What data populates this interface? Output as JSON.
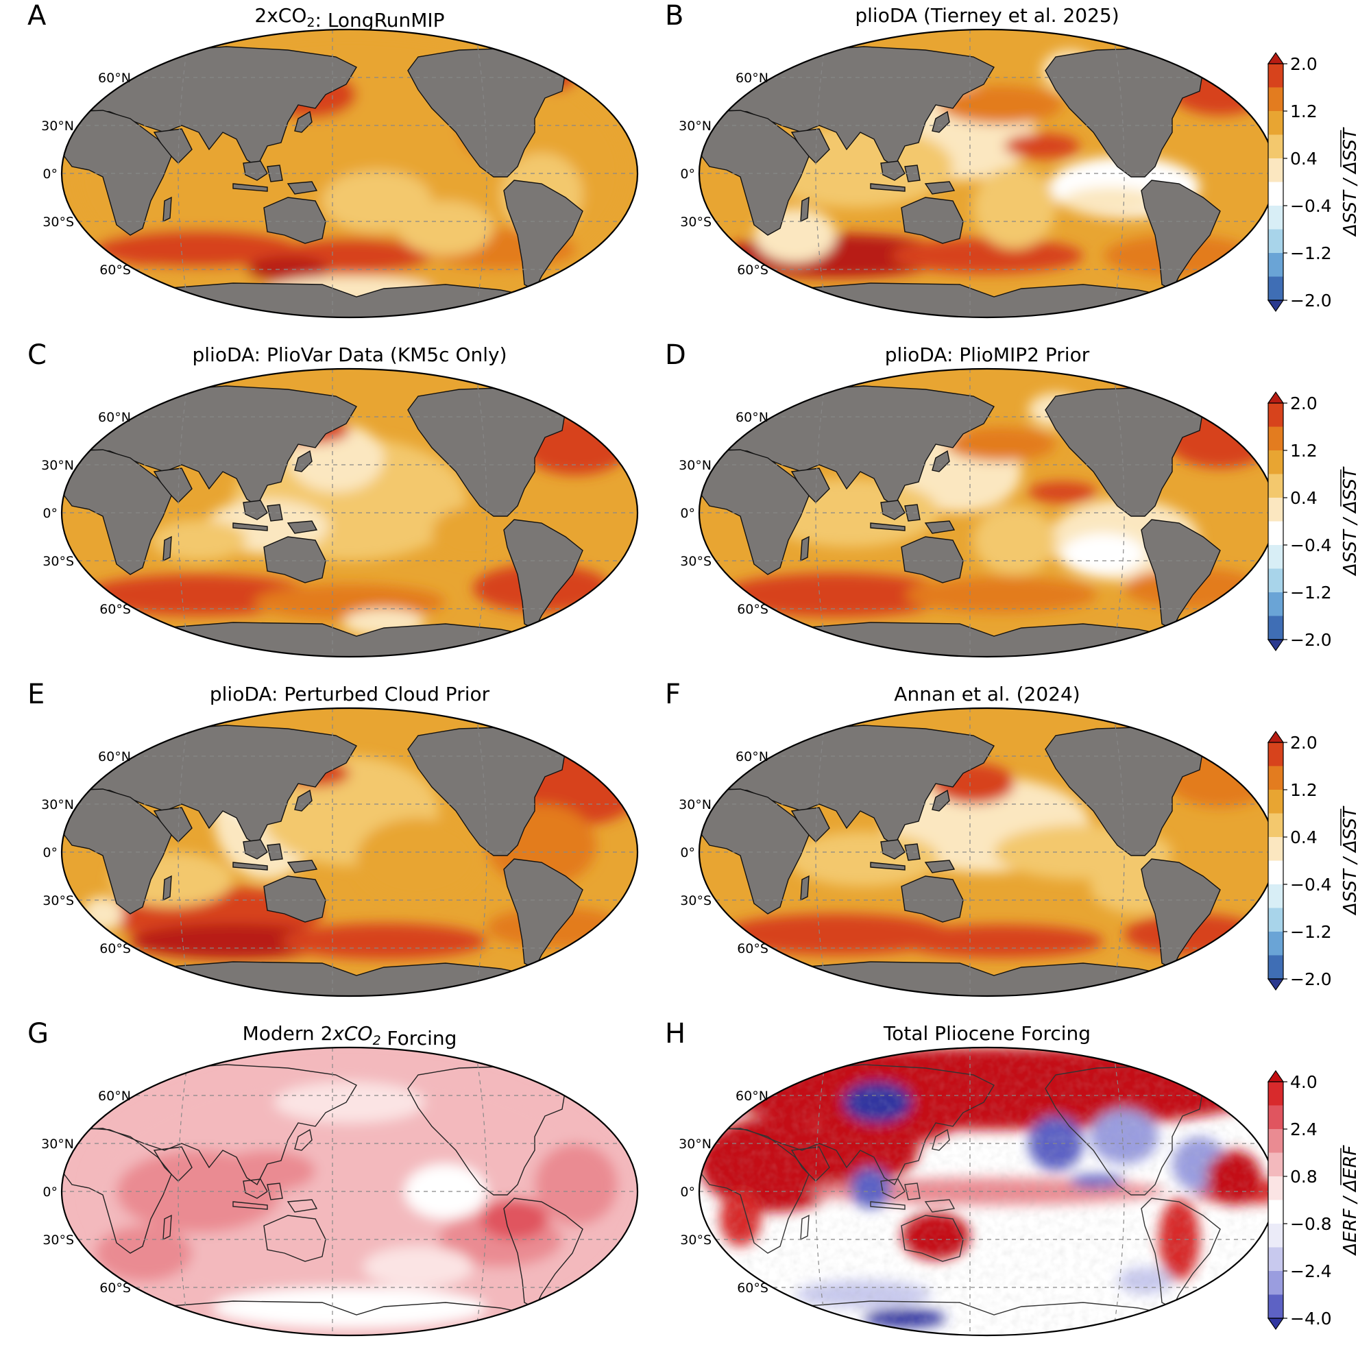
{
  "panels": [
    {
      "letter": "A",
      "title_parts": [
        {
          "t": "2xCO"
        },
        {
          "t": "2",
          "sub": true
        },
        {
          "t": ": LongRunMIP"
        }
      ],
      "kind": "sst",
      "style": "A"
    },
    {
      "letter": "B",
      "title_parts": [
        {
          "t": "plioDA (Tierney et al. 2025)"
        }
      ],
      "kind": "sst",
      "style": "B"
    },
    {
      "letter": "C",
      "title_parts": [
        {
          "t": "plioDA: PlioVar Data (KM5c Only)"
        }
      ],
      "kind": "sst",
      "style": "C"
    },
    {
      "letter": "D",
      "title_parts": [
        {
          "t": "plioDA: PlioMIP2 Prior"
        }
      ],
      "kind": "sst",
      "style": "D"
    },
    {
      "letter": "E",
      "title_parts": [
        {
          "t": "plioDA: Perturbed Cloud Prior"
        }
      ],
      "kind": "sst",
      "style": "E"
    },
    {
      "letter": "F",
      "title_parts": [
        {
          "t": "Annan et al. (2024)"
        }
      ],
      "kind": "sst",
      "style": "F"
    },
    {
      "letter": "G",
      "title_parts": [
        {
          "t": "Modern 2"
        },
        {
          "t": "xCO",
          "it": true
        },
        {
          "t": "2",
          "sub": true,
          "it": true
        },
        {
          "t": " Forcing"
        }
      ],
      "kind": "forcing",
      "style": "G"
    },
    {
      "letter": "H",
      "title_parts": [
        {
          "t": "Total Pliocene Forcing"
        }
      ],
      "kind": "forcing",
      "style": "H"
    }
  ],
  "lat_labels": [
    "60°N",
    "30°N",
    "0°",
    "30°S",
    "60°S"
  ],
  "colorbars": [
    {
      "rows": [
        0
      ],
      "ticks": [
        "2.0",
        "1.2",
        "0.4",
        "−0.4",
        "−1.2",
        "−2.0"
      ],
      "label": "ΔSST / ΔSST",
      "overline": "ΔSST"
    },
    {
      "rows": [
        1
      ],
      "ticks": [
        "2.0",
        "1.2",
        "0.4",
        "−0.4",
        "−1.2",
        "−2.0"
      ],
      "label": "ΔSST / ΔSST",
      "overline": "ΔSST"
    },
    {
      "rows": [
        2
      ],
      "ticks": [
        "2.0",
        "1.2",
        "0.4",
        "−0.4",
        "−1.2",
        "−2.0"
      ],
      "label": "ΔSST / ΔSST",
      "overline": "ΔSST"
    },
    {
      "rows": [
        3
      ],
      "ticks": [
        "4.0",
        "2.4",
        "0.8",
        "−0.8",
        "−2.4",
        "−4.0"
      ],
      "label": "ΔERF / ΔERF",
      "overline": "ΔERF"
    }
  ],
  "colors": {
    "land": "#7a7775",
    "sst_scale": [
      "#2b3a8f",
      "#3f6eb5",
      "#6aa4d6",
      "#a8d4ea",
      "#d8eef6",
      "#ffffff",
      "#fbe7c0",
      "#f3c86d",
      "#e8a532",
      "#e37c1f",
      "#d7431c",
      "#b81d13"
    ],
    "erf_scale": [
      "#3036a0",
      "#5d62c4",
      "#9a9ddf",
      "#c8c9ee",
      "#ebebf8",
      "#ffffff",
      "#fbe4e4",
      "#f3b9bd",
      "#ea8b92",
      "#e0555f",
      "#d82a2c",
      "#c40e12"
    ]
  }
}
